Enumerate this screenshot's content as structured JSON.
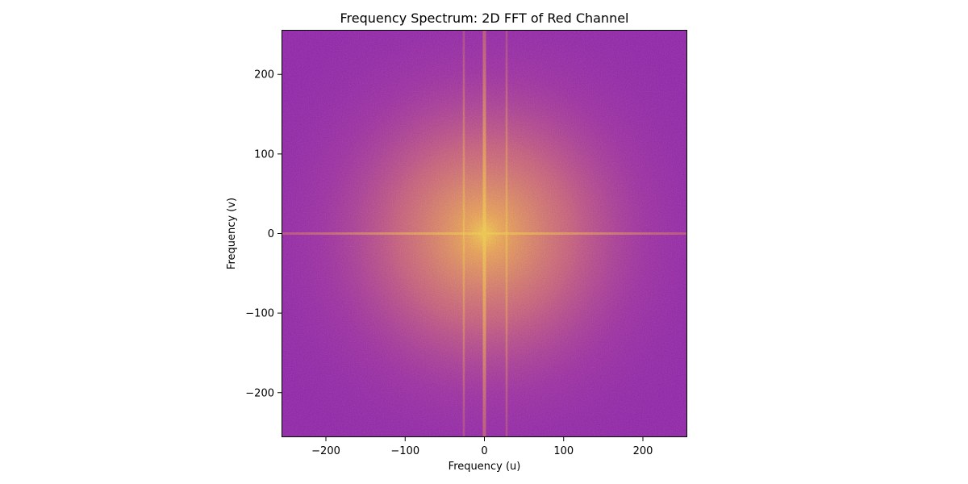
{
  "chart_data": {
    "type": "heatmap",
    "title": "Frequency Spectrum: 2D FFT of Red Channel",
    "xlabel": "Frequency (u)",
    "ylabel": "Frequency (v)",
    "xlim": [
      -256,
      256
    ],
    "ylim": [
      -256,
      256
    ],
    "x_ticks": [
      -200,
      -100,
      0,
      100,
      200
    ],
    "y_ticks": [
      -200,
      -100,
      0,
      100,
      200
    ],
    "x_tick_labels": [
      "−200",
      "−100",
      "0",
      "100",
      "200"
    ],
    "y_tick_labels": [
      "−200",
      "−100",
      "0",
      "100",
      "200"
    ],
    "colormap": "plasma",
    "colors": {
      "background": "#8a0ba6",
      "peak": "#f9c93a",
      "frame": "#000000"
    },
    "grid": false,
    "features": {
      "dc_peak": {
        "u": 0,
        "v": 0
      },
      "bright_vertical_lines_u": [
        0,
        -26,
        28
      ],
      "bright_horizontal_line_v": 0
    }
  }
}
